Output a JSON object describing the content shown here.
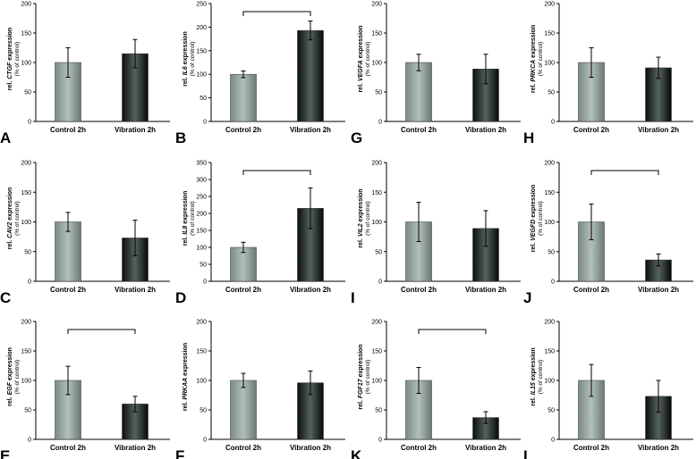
{
  "colors": {
    "control_dark": "#6e7f78",
    "control_light": "#a7b5ae",
    "vibration_dark": "#050808",
    "vibration_light": "#4a5650",
    "axis": "#000000",
    "bracket": "#000000"
  },
  "chart_data": [
    {
      "panel_letter": "A",
      "type": "bar",
      "categories": [
        "Control 2h",
        "Vibration 2h"
      ],
      "values": [
        100,
        115
      ],
      "errors": [
        25,
        24
      ],
      "ylim": [
        0,
        200
      ],
      "yticks": [
        0,
        50,
        100,
        150,
        200
      ],
      "ylabel_prefix": "rel.",
      "ylabel_gene": "CTGF",
      "ylabel_suffix": "expression",
      "ylabel_sub": "(% of control)",
      "significance": false
    },
    {
      "panel_letter": "B",
      "type": "bar",
      "categories": [
        "Control 2h",
        "Vibration 2h"
      ],
      "values": [
        100,
        193
      ],
      "errors": [
        7,
        20
      ],
      "ylim": [
        0,
        250
      ],
      "yticks": [
        0,
        50,
        100,
        150,
        200,
        250
      ],
      "ylabel_prefix": "rel.",
      "ylabel_gene": "IL6",
      "ylabel_suffix": "expression",
      "ylabel_sub": "(% of control)",
      "significance": true
    },
    {
      "panel_letter": "G",
      "type": "bar",
      "categories": [
        "Control 2h",
        "Vibration 2h"
      ],
      "values": [
        100,
        89
      ],
      "errors": [
        14,
        25
      ],
      "ylim": [
        0,
        200
      ],
      "yticks": [
        0,
        50,
        100,
        150,
        200
      ],
      "ylabel_prefix": "rel.",
      "ylabel_gene": "VEGFA",
      "ylabel_suffix": "expression",
      "ylabel_sub": "(% of control)",
      "significance": false
    },
    {
      "panel_letter": "H",
      "type": "bar",
      "categories": [
        "Control 2h",
        "Vibration 2h"
      ],
      "values": [
        100,
        91
      ],
      "errors": [
        25,
        18
      ],
      "ylim": [
        0,
        200
      ],
      "yticks": [
        0,
        50,
        100,
        150,
        200
      ],
      "ylabel_prefix": "rel.",
      "ylabel_gene": "PRKCA",
      "ylabel_suffix": "expression",
      "ylabel_sub": "(% of control)",
      "significance": false
    },
    {
      "panel_letter": "C",
      "type": "bar",
      "categories": [
        "Control 2h",
        "Vibration 2h"
      ],
      "values": [
        100,
        73
      ],
      "errors": [
        16,
        30
      ],
      "ylim": [
        0,
        200
      ],
      "yticks": [
        0,
        50,
        100,
        150,
        200
      ],
      "ylabel_prefix": "rel.",
      "ylabel_gene": "CAV2",
      "ylabel_suffix": "expression",
      "ylabel_sub": "(% of control)",
      "significance": false
    },
    {
      "panel_letter": "D",
      "type": "bar",
      "categories": [
        "Control 2h",
        "Vibration 2h"
      ],
      "values": [
        100,
        215
      ],
      "errors": [
        15,
        60
      ],
      "ylim": [
        0,
        350
      ],
      "yticks": [
        0,
        50,
        100,
        150,
        200,
        250,
        300,
        350
      ],
      "ylabel_prefix": "rel.",
      "ylabel_gene": "IL8",
      "ylabel_suffix": "expression",
      "ylabel_sub": "(% of control)",
      "significance": true
    },
    {
      "panel_letter": "I",
      "type": "bar",
      "categories": [
        "Control 2h",
        "Vibration 2h"
      ],
      "values": [
        100,
        89
      ],
      "errors": [
        33,
        30
      ],
      "ylim": [
        0,
        200
      ],
      "yticks": [
        0,
        50,
        100,
        150,
        200
      ],
      "ylabel_prefix": "rel.",
      "ylabel_gene": "VIL2",
      "ylabel_suffix": "expression",
      "ylabel_sub": "(% of control)",
      "significance": false
    },
    {
      "panel_letter": "J",
      "type": "bar",
      "categories": [
        "Control 2h",
        "Vibration 2h"
      ],
      "values": [
        100,
        36
      ],
      "errors": [
        30,
        10
      ],
      "ylim": [
        0,
        200
      ],
      "yticks": [
        0,
        50,
        100,
        150,
        200
      ],
      "ylabel_prefix": "rel.",
      "ylabel_gene": "VEGFD",
      "ylabel_suffix": "expression",
      "ylabel_sub": "(% of control)",
      "significance": true
    },
    {
      "panel_letter": "E",
      "type": "bar",
      "categories": [
        "Control 2h",
        "Vibration 2h"
      ],
      "values": [
        100,
        60
      ],
      "errors": [
        24,
        13
      ],
      "ylim": [
        0,
        200
      ],
      "yticks": [
        0,
        50,
        100,
        150,
        200
      ],
      "ylabel_prefix": "rel.",
      "ylabel_gene": "EGF",
      "ylabel_suffix": "expression",
      "ylabel_sub": "(% of control)",
      "significance": true
    },
    {
      "panel_letter": "F",
      "type": "bar",
      "categories": [
        "Control 2h",
        "Vibration 2h"
      ],
      "values": [
        100,
        96
      ],
      "errors": [
        12,
        20
      ],
      "ylim": [
        0,
        200
      ],
      "yticks": [
        0,
        50,
        100,
        150,
        200
      ],
      "ylabel_prefix": "rel.",
      "ylabel_gene": "PRKAA",
      "ylabel_suffix": "expression",
      "ylabel_sub": "",
      "significance": false
    },
    {
      "panel_letter": "K",
      "type": "bar",
      "categories": [
        "Control 2h",
        "Vibration 2h"
      ],
      "values": [
        100,
        37
      ],
      "errors": [
        22,
        10
      ],
      "ylim": [
        0,
        200
      ],
      "yticks": [
        0,
        50,
        100,
        150,
        200
      ],
      "ylabel_prefix": "rel.",
      "ylabel_gene": "FGF17",
      "ylabel_suffix": "expression",
      "ylabel_sub": "(% of control)",
      "significance": true
    },
    {
      "panel_letter": "L",
      "type": "bar",
      "categories": [
        "Control 2h",
        "Vibration 2h"
      ],
      "values": [
        100,
        73
      ],
      "errors": [
        27,
        27
      ],
      "ylim": [
        0,
        200
      ],
      "yticks": [
        0,
        50,
        100,
        150,
        200
      ],
      "ylabel_prefix": "rel.",
      "ylabel_gene": "IL15",
      "ylabel_suffix": "expression",
      "ylabel_sub": "(% of control)",
      "significance": false
    }
  ]
}
